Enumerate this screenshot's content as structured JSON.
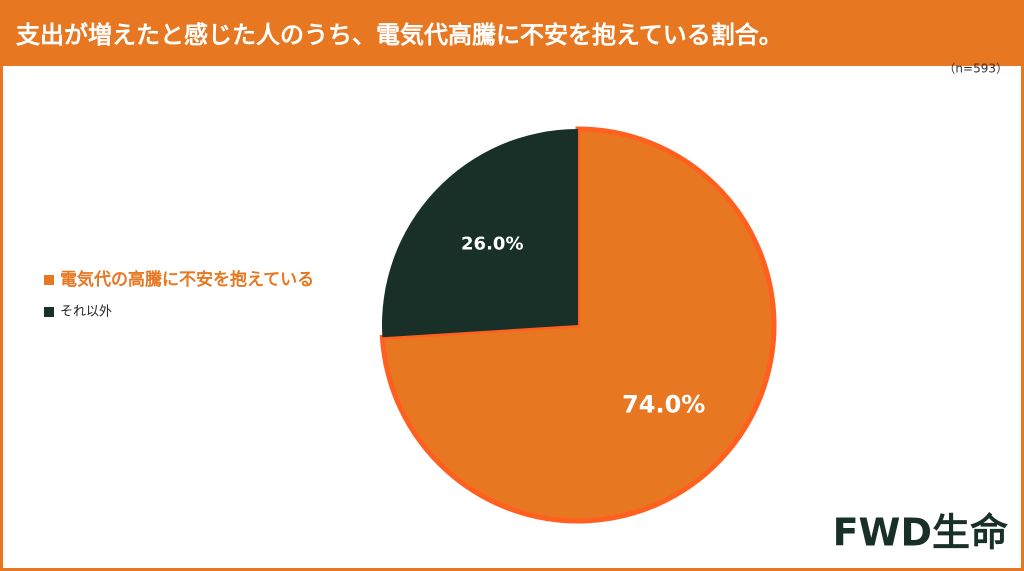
{
  "chart_data": {
    "type": "pie",
    "title": "支出が増えたと感じた人のうち、電気代高騰に不安を抱えている割合。",
    "subtitle": "（n=593）",
    "categories": [
      "電気代の高騰に不安を抱えている",
      "それ以外"
    ],
    "values": [
      74.0,
      26.0
    ],
    "value_labels": [
      "74.0%",
      "26.0%"
    ],
    "colors": [
      "#e87722",
      "#183028"
    ],
    "legend": "left"
  },
  "logo": "FWD生命"
}
